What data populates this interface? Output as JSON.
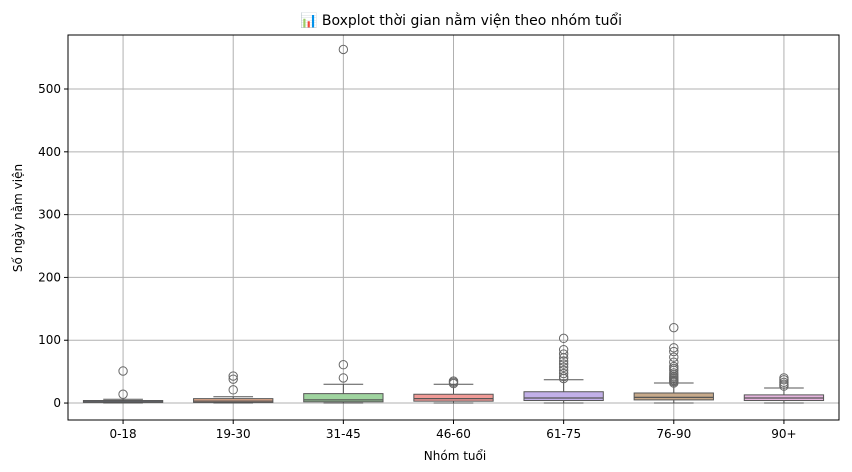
{
  "chart_data": {
    "type": "box",
    "title": "📊 Boxplot thời gian nằm viện theo nhóm tuổi",
    "xlabel": "Nhóm tuổi",
    "ylabel": "Số ngày nằm viện",
    "ylim": [
      -27,
      586
    ],
    "yticks": [
      0,
      100,
      200,
      300,
      400,
      500
    ],
    "grid": true,
    "colors": {
      "median": "#555555",
      "whisker": "#555555",
      "grid": "#b0b0b0",
      "axis": "#000000"
    },
    "categories": [
      {
        "label": "0-18",
        "color": "#8fa9c7",
        "q1": 1,
        "median": 2,
        "q3": 4,
        "whisker_low": 0,
        "whisker_high": 6,
        "outliers": [
          14,
          51
        ]
      },
      {
        "label": "19-30",
        "color": "#e2a98a",
        "q1": 1,
        "median": 3,
        "q3": 7,
        "whisker_low": 0,
        "whisker_high": 10,
        "outliers": [
          21,
          38,
          43
        ]
      },
      {
        "label": "31-45",
        "color": "#9fd49f",
        "q1": 2,
        "median": 5,
        "q3": 15,
        "whisker_low": 0,
        "whisker_high": 30,
        "outliers": [
          40,
          61,
          563
        ]
      },
      {
        "label": "46-60",
        "color": "#f09a96",
        "q1": 3,
        "median": 7,
        "q3": 14,
        "whisker_low": 0,
        "whisker_high": 30,
        "outliers": [
          31,
          33,
          35
        ]
      },
      {
        "label": "61-75",
        "color": "#c2b0e8",
        "q1": 4,
        "median": 8,
        "q3": 18,
        "whisker_low": 0,
        "whisker_high": 37,
        "outliers": [
          39,
          42,
          47,
          52,
          57,
          62,
          67,
          72,
          78,
          85,
          103
        ]
      },
      {
        "label": "76-90",
        "color": "#c7a98a",
        "q1": 5,
        "median": 9,
        "q3": 16,
        "whisker_low": 0,
        "whisker_high": 32,
        "outliers": [
          32,
          34,
          36,
          38,
          40,
          42,
          45,
          48,
          52,
          55,
          58,
          65,
          73,
          82,
          88,
          120
        ]
      },
      {
        "label": "90+",
        "color": "#e6b5de",
        "q1": 4,
        "median": 8,
        "q3": 13,
        "whisker_low": 0,
        "whisker_high": 24,
        "outliers": [
          27,
          30,
          33,
          37,
          40
        ]
      }
    ]
  }
}
